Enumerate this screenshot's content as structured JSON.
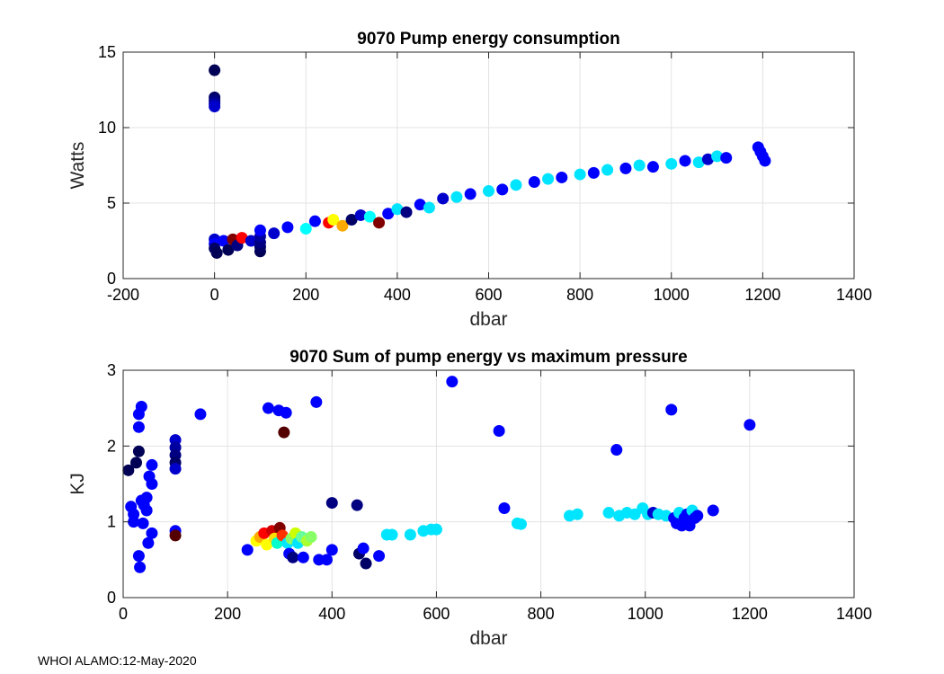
{
  "footer": "WHOI ALAMO:12-May-2020",
  "chart_data": [
    {
      "type": "scatter",
      "title": "9070 Pump energy consumption",
      "xlabel": "dbar",
      "ylabel": "Watts",
      "xlim": [
        -200,
        1400
      ],
      "ylim": [
        0,
        15
      ],
      "xticks": [
        -200,
        0,
        200,
        400,
        600,
        800,
        1000,
        1200,
        1400
      ],
      "yticks": [
        0,
        5,
        10,
        15
      ],
      "grid": true,
      "points": [
        {
          "x": 0,
          "y": 13.8,
          "c": "#000055"
        },
        {
          "x": 0,
          "y": 12.0,
          "c": "#000066"
        },
        {
          "x": 0,
          "y": 11.8,
          "c": "#000080"
        },
        {
          "x": 0,
          "y": 11.6,
          "c": "#0000a0"
        },
        {
          "x": 0,
          "y": 11.4,
          "c": "#0000cc"
        },
        {
          "x": 0,
          "y": 2.6,
          "c": "#0000cc"
        },
        {
          "x": 0,
          "y": 2.3,
          "c": "#0000ff"
        },
        {
          "x": 0,
          "y": 2.0,
          "c": "#000066"
        },
        {
          "x": 5,
          "y": 1.7,
          "c": "#000055"
        },
        {
          "x": 20,
          "y": 2.5,
          "c": "#0000ff"
        },
        {
          "x": 30,
          "y": 1.9,
          "c": "#000055"
        },
        {
          "x": 40,
          "y": 2.6,
          "c": "#800000"
        },
        {
          "x": 50,
          "y": 2.2,
          "c": "#000080"
        },
        {
          "x": 60,
          "y": 2.7,
          "c": "#ff0000"
        },
        {
          "x": 80,
          "y": 2.5,
          "c": "#0000cc"
        },
        {
          "x": 100,
          "y": 1.8,
          "c": "#000055"
        },
        {
          "x": 100,
          "y": 2.1,
          "c": "#000066"
        },
        {
          "x": 100,
          "y": 2.4,
          "c": "#000080"
        },
        {
          "x": 100,
          "y": 2.8,
          "c": "#0000a0"
        },
        {
          "x": 100,
          "y": 3.2,
          "c": "#0000ff"
        },
        {
          "x": 130,
          "y": 3.0,
          "c": "#0000cc"
        },
        {
          "x": 160,
          "y": 3.4,
          "c": "#0000ff"
        },
        {
          "x": 200,
          "y": 3.3,
          "c": "#00ffff"
        },
        {
          "x": 220,
          "y": 3.8,
          "c": "#0000ff"
        },
        {
          "x": 250,
          "y": 3.7,
          "c": "#ff0000"
        },
        {
          "x": 260,
          "y": 3.9,
          "c": "#ffff00"
        },
        {
          "x": 280,
          "y": 3.5,
          "c": "#ffaa00"
        },
        {
          "x": 300,
          "y": 3.9,
          "c": "#000066"
        },
        {
          "x": 320,
          "y": 4.2,
          "c": "#0000cc"
        },
        {
          "x": 340,
          "y": 4.1,
          "c": "#00ffff"
        },
        {
          "x": 360,
          "y": 3.7,
          "c": "#800000"
        },
        {
          "x": 380,
          "y": 4.3,
          "c": "#0000ff"
        },
        {
          "x": 400,
          "y": 4.6,
          "c": "#00e5ff"
        },
        {
          "x": 420,
          "y": 4.4,
          "c": "#000080"
        },
        {
          "x": 450,
          "y": 4.9,
          "c": "#0000ff"
        },
        {
          "x": 470,
          "y": 4.7,
          "c": "#00e5ff"
        },
        {
          "x": 500,
          "y": 5.3,
          "c": "#0000cc"
        },
        {
          "x": 530,
          "y": 5.4,
          "c": "#00e5ff"
        },
        {
          "x": 560,
          "y": 5.6,
          "c": "#0000ff"
        },
        {
          "x": 600,
          "y": 5.8,
          "c": "#00e5ff"
        },
        {
          "x": 630,
          "y": 5.9,
          "c": "#0000ff"
        },
        {
          "x": 660,
          "y": 6.2,
          "c": "#00e5ff"
        },
        {
          "x": 700,
          "y": 6.4,
          "c": "#0000ff"
        },
        {
          "x": 730,
          "y": 6.6,
          "c": "#00e5ff"
        },
        {
          "x": 760,
          "y": 6.7,
          "c": "#0000ff"
        },
        {
          "x": 800,
          "y": 6.9,
          "c": "#00e5ff"
        },
        {
          "x": 830,
          "y": 7.0,
          "c": "#0000ff"
        },
        {
          "x": 860,
          "y": 7.2,
          "c": "#00e5ff"
        },
        {
          "x": 900,
          "y": 7.3,
          "c": "#0000ff"
        },
        {
          "x": 930,
          "y": 7.5,
          "c": "#00e5ff"
        },
        {
          "x": 960,
          "y": 7.4,
          "c": "#0000ff"
        },
        {
          "x": 1000,
          "y": 7.6,
          "c": "#00e5ff"
        },
        {
          "x": 1030,
          "y": 7.8,
          "c": "#0000ff"
        },
        {
          "x": 1060,
          "y": 7.7,
          "c": "#00e5ff"
        },
        {
          "x": 1080,
          "y": 7.9,
          "c": "#0000cc"
        },
        {
          "x": 1100,
          "y": 8.1,
          "c": "#00e5ff"
        },
        {
          "x": 1120,
          "y": 8.0,
          "c": "#0000ff"
        },
        {
          "x": 1190,
          "y": 8.7,
          "c": "#0000ff"
        },
        {
          "x": 1195,
          "y": 8.4,
          "c": "#0000ff"
        },
        {
          "x": 1200,
          "y": 8.1,
          "c": "#0000ff"
        },
        {
          "x": 1205,
          "y": 7.8,
          "c": "#0000ff"
        }
      ]
    },
    {
      "type": "scatter",
      "title": "9070 Sum of pump energy vs maximum pressure",
      "xlabel": "dbar",
      "ylabel": "KJ",
      "xlim": [
        0,
        1400
      ],
      "ylim": [
        0,
        3
      ],
      "xticks": [
        0,
        200,
        400,
        600,
        800,
        1000,
        1200,
        1400
      ],
      "yticks": [
        0,
        1,
        2,
        3
      ],
      "grid": true,
      "points": [
        {
          "x": 10,
          "y": 1.68,
          "c": "#000055"
        },
        {
          "x": 15,
          "y": 1.2,
          "c": "#0000ff"
        },
        {
          "x": 20,
          "y": 1.1,
          "c": "#0000ff"
        },
        {
          "x": 20,
          "y": 1.0,
          "c": "#0000ff"
        },
        {
          "x": 25,
          "y": 1.78,
          "c": "#000055"
        },
        {
          "x": 30,
          "y": 1.93,
          "c": "#000055"
        },
        {
          "x": 30,
          "y": 2.25,
          "c": "#0000ff"
        },
        {
          "x": 30,
          "y": 2.42,
          "c": "#0000ff"
        },
        {
          "x": 35,
          "y": 2.52,
          "c": "#0000ff"
        },
        {
          "x": 30,
          "y": 0.55,
          "c": "#0000ff"
        },
        {
          "x": 32,
          "y": 0.4,
          "c": "#0000ff"
        },
        {
          "x": 35,
          "y": 1.28,
          "c": "#0000ff"
        },
        {
          "x": 38,
          "y": 0.98,
          "c": "#0000ff"
        },
        {
          "x": 40,
          "y": 1.22,
          "c": "#0000ff"
        },
        {
          "x": 45,
          "y": 1.32,
          "c": "#0000ff"
        },
        {
          "x": 45,
          "y": 1.15,
          "c": "#0000ff"
        },
        {
          "x": 48,
          "y": 0.72,
          "c": "#0000ff"
        },
        {
          "x": 50,
          "y": 1.6,
          "c": "#0000ff"
        },
        {
          "x": 55,
          "y": 1.75,
          "c": "#0000ff"
        },
        {
          "x": 55,
          "y": 1.5,
          "c": "#0000ff"
        },
        {
          "x": 55,
          "y": 0.85,
          "c": "#0000ff"
        },
        {
          "x": 100,
          "y": 2.08,
          "c": "#0000cc"
        },
        {
          "x": 100,
          "y": 1.98,
          "c": "#0000a0"
        },
        {
          "x": 100,
          "y": 1.88,
          "c": "#000080"
        },
        {
          "x": 100,
          "y": 1.78,
          "c": "#000066"
        },
        {
          "x": 100,
          "y": 1.7,
          "c": "#0000cc"
        },
        {
          "x": 100,
          "y": 0.88,
          "c": "#0000ff"
        },
        {
          "x": 100,
          "y": 0.82,
          "c": "#550000"
        },
        {
          "x": 148,
          "y": 2.42,
          "c": "#0000ff"
        },
        {
          "x": 238,
          "y": 0.63,
          "c": "#0000ff"
        },
        {
          "x": 255,
          "y": 0.75,
          "c": "#ffff00"
        },
        {
          "x": 262,
          "y": 0.8,
          "c": "#ffaa00"
        },
        {
          "x": 270,
          "y": 0.85,
          "c": "#ff0000"
        },
        {
          "x": 275,
          "y": 0.7,
          "c": "#ffff00"
        },
        {
          "x": 278,
          "y": 2.5,
          "c": "#0000ff"
        },
        {
          "x": 285,
          "y": 0.88,
          "c": "#cc0000"
        },
        {
          "x": 290,
          "y": 0.78,
          "c": "#ffdd00"
        },
        {
          "x": 295,
          "y": 0.72,
          "c": "#00ffcc"
        },
        {
          "x": 298,
          "y": 2.47,
          "c": "#0000ff"
        },
        {
          "x": 300,
          "y": 0.92,
          "c": "#800000"
        },
        {
          "x": 305,
          "y": 0.82,
          "c": "#ff3300"
        },
        {
          "x": 308,
          "y": 2.18,
          "c": "#550000"
        },
        {
          "x": 312,
          "y": 2.44,
          "c": "#0000ff"
        },
        {
          "x": 315,
          "y": 0.72,
          "c": "#00e5ff"
        },
        {
          "x": 318,
          "y": 0.58,
          "c": "#0000ff"
        },
        {
          "x": 322,
          "y": 0.78,
          "c": "#88ff66"
        },
        {
          "x": 325,
          "y": 0.53,
          "c": "#000080"
        },
        {
          "x": 330,
          "y": 0.85,
          "c": "#ccff00"
        },
        {
          "x": 335,
          "y": 0.72,
          "c": "#00e5ff"
        },
        {
          "x": 342,
          "y": 0.8,
          "c": "#66ff99"
        },
        {
          "x": 345,
          "y": 0.53,
          "c": "#0000ff"
        },
        {
          "x": 352,
          "y": 0.75,
          "c": "#aaff33"
        },
        {
          "x": 360,
          "y": 0.8,
          "c": "#88ff66"
        },
        {
          "x": 370,
          "y": 2.58,
          "c": "#0000ff"
        },
        {
          "x": 375,
          "y": 0.5,
          "c": "#0000ff"
        },
        {
          "x": 390,
          "y": 0.5,
          "c": "#0000ff"
        },
        {
          "x": 400,
          "y": 0.63,
          "c": "#0000ff"
        },
        {
          "x": 400,
          "y": 1.25,
          "c": "#000080"
        },
        {
          "x": 448,
          "y": 1.22,
          "c": "#000080"
        },
        {
          "x": 452,
          "y": 0.58,
          "c": "#000066"
        },
        {
          "x": 460,
          "y": 0.65,
          "c": "#0000ff"
        },
        {
          "x": 465,
          "y": 0.45,
          "c": "#000066"
        },
        {
          "x": 490,
          "y": 0.55,
          "c": "#0000ff"
        },
        {
          "x": 505,
          "y": 0.83,
          "c": "#00e5ff"
        },
        {
          "x": 515,
          "y": 0.83,
          "c": "#00e5ff"
        },
        {
          "x": 550,
          "y": 0.83,
          "c": "#00e5ff"
        },
        {
          "x": 575,
          "y": 0.88,
          "c": "#00e5ff"
        },
        {
          "x": 590,
          "y": 0.9,
          "c": "#00e5ff"
        },
        {
          "x": 600,
          "y": 0.9,
          "c": "#00e5ff"
        },
        {
          "x": 630,
          "y": 2.85,
          "c": "#0000ff"
        },
        {
          "x": 720,
          "y": 2.2,
          "c": "#0000ff"
        },
        {
          "x": 730,
          "y": 1.18,
          "c": "#0000ff"
        },
        {
          "x": 755,
          "y": 0.98,
          "c": "#00e5ff"
        },
        {
          "x": 762,
          "y": 0.97,
          "c": "#00e5ff"
        },
        {
          "x": 855,
          "y": 1.08,
          "c": "#00e5ff"
        },
        {
          "x": 870,
          "y": 1.1,
          "c": "#00e5ff"
        },
        {
          "x": 930,
          "y": 1.12,
          "c": "#00e5ff"
        },
        {
          "x": 945,
          "y": 1.95,
          "c": "#0000ff"
        },
        {
          "x": 950,
          "y": 1.08,
          "c": "#00e5ff"
        },
        {
          "x": 965,
          "y": 1.12,
          "c": "#00e5ff"
        },
        {
          "x": 980,
          "y": 1.1,
          "c": "#00e5ff"
        },
        {
          "x": 995,
          "y": 1.18,
          "c": "#00e5ff"
        },
        {
          "x": 1005,
          "y": 1.1,
          "c": "#00e5ff"
        },
        {
          "x": 1015,
          "y": 1.12,
          "c": "#0000cc"
        },
        {
          "x": 1025,
          "y": 1.1,
          "c": "#00e5ff"
        },
        {
          "x": 1040,
          "y": 1.08,
          "c": "#00e5ff"
        },
        {
          "x": 1050,
          "y": 2.48,
          "c": "#0000ff"
        },
        {
          "x": 1055,
          "y": 1.05,
          "c": "#0000ff"
        },
        {
          "x": 1060,
          "y": 0.98,
          "c": "#0000ff"
        },
        {
          "x": 1065,
          "y": 1.12,
          "c": "#00e5ff"
        },
        {
          "x": 1070,
          "y": 0.95,
          "c": "#0000ff"
        },
        {
          "x": 1075,
          "y": 1.05,
          "c": "#0000ff"
        },
        {
          "x": 1080,
          "y": 1.1,
          "c": "#0000ff"
        },
        {
          "x": 1085,
          "y": 0.95,
          "c": "#0000ff"
        },
        {
          "x": 1090,
          "y": 1.15,
          "c": "#00e5ff"
        },
        {
          "x": 1095,
          "y": 1.05,
          "c": "#0000ff"
        },
        {
          "x": 1100,
          "y": 1.08,
          "c": "#0000ff"
        },
        {
          "x": 1130,
          "y": 1.15,
          "c": "#0000ff"
        },
        {
          "x": 1200,
          "y": 2.28,
          "c": "#0000ff"
        }
      ]
    }
  ]
}
